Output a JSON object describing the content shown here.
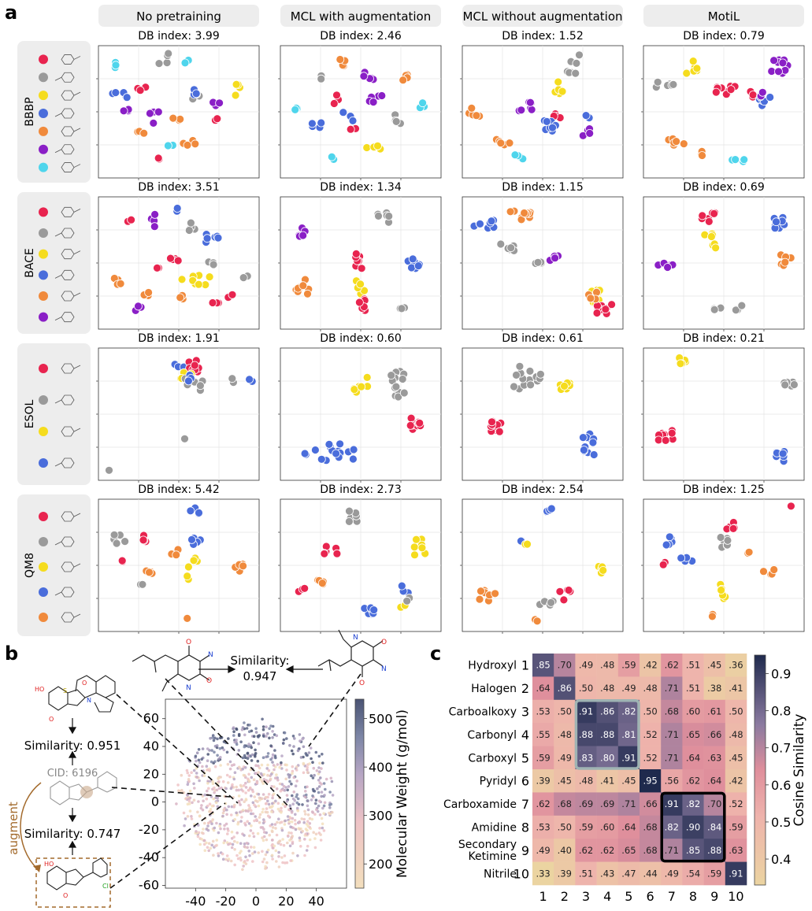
{
  "panel_labels": {
    "a": "a",
    "b": "b",
    "c": "c"
  },
  "column_headers": [
    "No pretraining",
    "MCL with augmentation",
    "MCL without augmentation",
    "MotiL"
  ],
  "datasets": [
    {
      "name": "BBBP",
      "classes": [
        "red",
        "gray",
        "yellow",
        "blue",
        "orange",
        "purple",
        "cyan"
      ],
      "db_index": [
        "DB index: 3.99",
        "DB index: 2.46",
        "DB index: 1.52",
        "DB index: 0.79"
      ]
    },
    {
      "name": "BACE",
      "classes": [
        "red",
        "gray",
        "yellow",
        "blue",
        "orange",
        "purple"
      ],
      "db_index": [
        "DB index: 3.51",
        "DB index: 1.34",
        "DB index: 1.15",
        "DB index: 0.69"
      ]
    },
    {
      "name": "ESOL",
      "classes": [
        "red",
        "gray",
        "yellow",
        "blue"
      ],
      "db_index": [
        "DB index: 1.91",
        "DB index: 0.60",
        "DB index: 0.61",
        "DB index: 0.21"
      ]
    },
    {
      "name": "QM8",
      "classes": [
        "red",
        "gray",
        "yellow",
        "blue",
        "orange"
      ],
      "db_index": [
        "DB index: 5.42",
        "DB index: 2.73",
        "DB index: 2.54",
        "DB index: 1.25"
      ]
    }
  ],
  "colors": {
    "red": "#e8244f",
    "gray": "#9a9a9a",
    "yellow": "#f5dc1e",
    "blue": "#4a6ddb",
    "orange": "#f08a3c",
    "purple": "#8a1fc6",
    "cyan": "#4fd5ec"
  },
  "panel_b": {
    "top_similarity_label": "Similarity:",
    "top_similarity_value": "0.947",
    "sim_1": "Similarity: 0.951",
    "cid": "CID: 6196",
    "sim_2": "Similarity: 0.747",
    "augment": "augment",
    "colorbar_label": "Molecular Weight (g/mol)",
    "colorbar_ticks": [
      "200",
      "300",
      "400",
      "500"
    ],
    "x_ticks": [
      "-40",
      "-20",
      "0",
      "20",
      "40"
    ],
    "y_ticks": [
      "60",
      "40",
      "20",
      "0",
      "-20",
      "-40",
      "-60"
    ]
  },
  "chart_data": [
    {
      "type": "scatter",
      "title": "",
      "xlabel": "",
      "ylabel": "",
      "xlim": [
        -60,
        60
      ],
      "ylim": [
        -62,
        74
      ],
      "colorbar": {
        "label": "Molecular Weight (g/mol)",
        "range": [
          150,
          540
        ]
      },
      "note": "t-SNE of molecule embeddings coloured by molecular weight"
    },
    {
      "type": "heatmap",
      "title": "",
      "row_labels": [
        "Hydroxyl",
        "Halogen",
        "Carboalkoxy",
        "Carbonyl",
        "Carboxyl",
        "Pyridyl",
        "Carboxamide",
        "Amidine",
        "Secondary\nKetimine",
        "Nitrile"
      ],
      "row_labels_display": [
        [
          "Hydroxyl"
        ],
        [
          "Halogen"
        ],
        [
          "Carboalkoxy"
        ],
        [
          "Carbonyl"
        ],
        [
          "Carboxyl"
        ],
        [
          "Pyridyl"
        ],
        [
          "Carboxamide"
        ],
        [
          "Amidine"
        ],
        [
          "Secondary",
          "Ketimine"
        ],
        [
          "Nitrile"
        ]
      ],
      "row_numbers": [
        "1",
        "2",
        "3",
        "4",
        "5",
        "6",
        "7",
        "8",
        "9",
        "10"
      ],
      "col_labels": [
        "1",
        "2",
        "3",
        "4",
        "5",
        "6",
        "7",
        "8",
        "9",
        "10"
      ],
      "values": [
        [
          0.85,
          0.7,
          0.49,
          0.48,
          0.59,
          0.42,
          0.62,
          0.51,
          0.45,
          0.36
        ],
        [
          0.64,
          0.86,
          0.5,
          0.48,
          0.49,
          0.48,
          0.71,
          0.51,
          0.38,
          0.41
        ],
        [
          0.53,
          0.5,
          0.91,
          0.86,
          0.82,
          0.5,
          0.68,
          0.6,
          0.61,
          0.5
        ],
        [
          0.55,
          0.48,
          0.88,
          0.88,
          0.81,
          0.52,
          0.71,
          0.65,
          0.66,
          0.48
        ],
        [
          0.59,
          0.49,
          0.83,
          0.8,
          0.91,
          0.52,
          0.71,
          0.64,
          0.63,
          0.45
        ],
        [
          0.39,
          0.45,
          0.48,
          0.41,
          0.45,
          0.95,
          0.56,
          0.62,
          0.64,
          0.42
        ],
        [
          0.62,
          0.68,
          0.69,
          0.69,
          0.71,
          0.66,
          0.91,
          0.82,
          0.7,
          0.52
        ],
        [
          0.53,
          0.5,
          0.59,
          0.6,
          0.64,
          0.68,
          0.82,
          0.9,
          0.84,
          0.59
        ],
        [
          0.49,
          0.4,
          0.62,
          0.62,
          0.65,
          0.68,
          0.71,
          0.85,
          0.88,
          0.63
        ],
        [
          0.33,
          0.39,
          0.51,
          0.43,
          0.47,
          0.44,
          0.49,
          0.54,
          0.59,
          0.91
        ]
      ],
      "cell_labels": [
        [
          ".85",
          ".70",
          ".49",
          ".48",
          ".59",
          ".42",
          ".62",
          ".51",
          ".45",
          ".36"
        ],
        [
          ".64",
          ".86",
          ".50",
          ".48",
          ".49",
          ".48",
          ".71",
          ".51",
          ".38",
          ".41"
        ],
        [
          ".53",
          ".50",
          ".91",
          ".86",
          ".82",
          ".50",
          ".68",
          ".60",
          ".61",
          ".50"
        ],
        [
          ".55",
          ".48",
          ".88",
          ".88",
          ".81",
          ".52",
          ".71",
          ".65",
          ".66",
          ".48"
        ],
        [
          ".59",
          ".49",
          ".83",
          ".80",
          ".91",
          ".52",
          ".71",
          ".64",
          ".63",
          ".45"
        ],
        [
          ".39",
          ".45",
          ".48",
          ".41",
          ".45",
          ".95",
          ".56",
          ".62",
          ".64",
          ".42"
        ],
        [
          ".62",
          ".68",
          ".69",
          ".69",
          ".71",
          ".66",
          ".91",
          ".82",
          ".70",
          ".52"
        ],
        [
          ".53",
          ".50",
          ".59",
          ".60",
          ".64",
          ".68",
          ".82",
          ".90",
          ".84",
          ".59"
        ],
        [
          ".49",
          ".40",
          ".62",
          ".62",
          ".65",
          ".68",
          ".71",
          ".85",
          ".88",
          ".63"
        ],
        [
          ".33",
          ".39",
          ".51",
          ".43",
          ".47",
          ".44",
          ".49",
          ".54",
          ".59",
          ".91"
        ]
      ],
      "highlight_blocks": [
        {
          "rows": [
            3,
            5
          ],
          "cols": [
            3,
            5
          ],
          "color": "#9fb3b3"
        },
        {
          "rows": [
            7,
            9
          ],
          "cols": [
            7,
            9
          ],
          "color": "#000000"
        }
      ],
      "colorbar": {
        "label": "Cosine Similarity",
        "range": [
          0.33,
          0.95
        ],
        "ticks": [
          0.4,
          0.5,
          0.6,
          0.7,
          0.8,
          0.9
        ],
        "tick_labels": [
          "0.4",
          "0.5",
          "0.6",
          "0.7",
          "0.8",
          "0.9"
        ]
      }
    }
  ]
}
